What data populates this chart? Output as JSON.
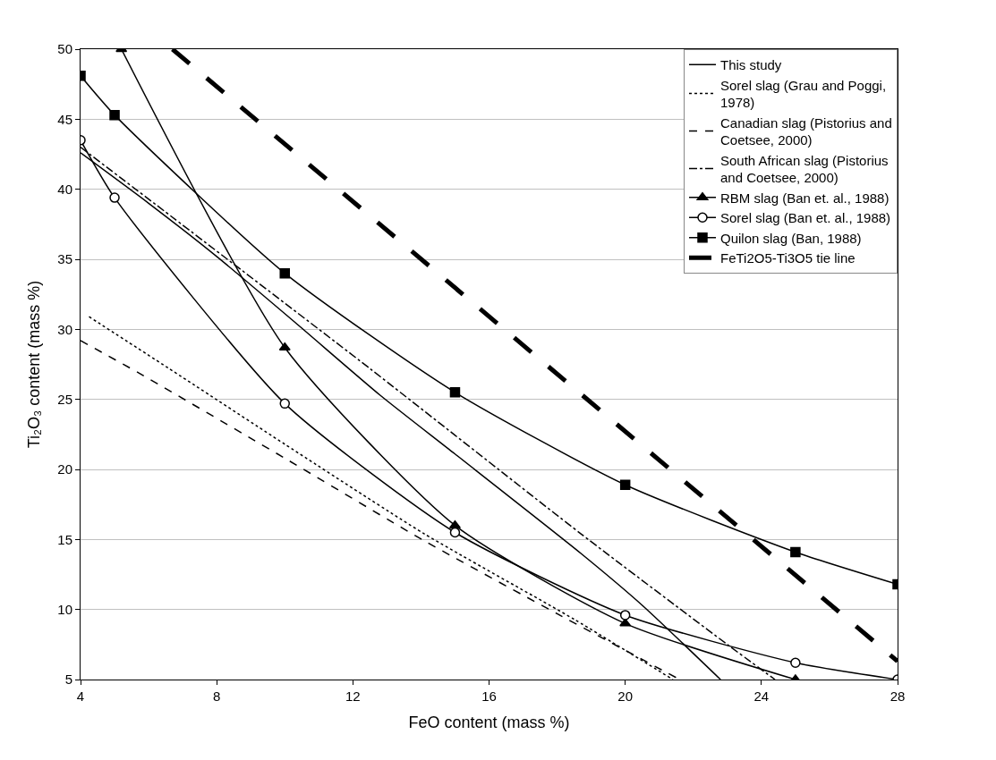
{
  "chart_data": {
    "type": "line",
    "xlabel": "FeO content (mass %)",
    "ylabel": "Ti₂O₃ content (mass %)",
    "xlim": [
      4,
      28
    ],
    "xticks": [
      4,
      8,
      12,
      16,
      20,
      24,
      28
    ],
    "ylim": [
      5,
      50
    ],
    "yticks": [
      5,
      10,
      15,
      20,
      25,
      30,
      35,
      40,
      45,
      50
    ],
    "grid": "y",
    "legend": "top right",
    "series": [
      {
        "name": "This study",
        "color": "#000000",
        "line_style": "solid",
        "marker": "none",
        "x": [
          4,
          6,
          8,
          10.3,
          12.8,
          15,
          18.7,
          20.5,
          22.8
        ],
        "values": [
          42.6,
          39.0,
          35.2,
          30.5,
          25.3,
          21.1,
          14.0,
          10.3,
          5
        ]
      },
      {
        "name": "Sorel slag (Grau and Poggi, 1978)",
        "color": "#000000",
        "line_style": "dotted",
        "marker": "none",
        "x": [
          4.25,
          6.6,
          10,
          14.1,
          18.5,
          21.4
        ],
        "values": [
          30.9,
          27.2,
          21.8,
          15.4,
          9.3,
          5
        ]
      },
      {
        "name": "Canadian slag (Pistorius and Coetsee, 2000)",
        "color": "#000000",
        "line_style": "dashed",
        "marker": "none",
        "x": [
          4,
          5.7,
          10,
          14.1,
          18,
          21.6
        ],
        "values": [
          29.2,
          26.9,
          20.8,
          14.9,
          9.7,
          5
        ]
      },
      {
        "name": "South African slag (Pistorius and Coetsee, 2000)",
        "color": "#000000",
        "line_style": "dashdot",
        "marker": "none",
        "x": [
          4,
          6.7,
          12.5,
          18.7,
          23,
          24.4
        ],
        "values": [
          43,
          38,
          27.2,
          15.4,
          7.5,
          5
        ]
      },
      {
        "name": "RBM slag (Ban et. al., 1988)",
        "color": "#000000",
        "line_style": "solid",
        "marker": "triangle",
        "x": [
          5.2,
          10,
          15,
          20,
          25
        ],
        "values": [
          50,
          28.7,
          16,
          9,
          5
        ]
      },
      {
        "name": "Sorel slag (Ban et. al., 1988)",
        "color": "#000000",
        "line_style": "solid",
        "marker": "open circle",
        "x": [
          4,
          5,
          10,
          15,
          20,
          25,
          28
        ],
        "values": [
          43.5,
          39.4,
          24.7,
          15.5,
          9.6,
          6.2,
          5
        ]
      },
      {
        "name": "Quilon slag (Ban, 1988)",
        "color": "#000000",
        "line_style": "solid",
        "marker": "square",
        "x": [
          4,
          5,
          10,
          15,
          20,
          25,
          28
        ],
        "values": [
          48.1,
          45.3,
          34.0,
          25.5,
          18.9,
          14.1,
          11.8
        ]
      },
      {
        "name": "FeTi2O5-Ti3O5 tie line",
        "color": "#000000",
        "line_style": "longdash",
        "marker": "none",
        "x": [
          6.7,
          28
        ],
        "values": [
          50,
          6.3
        ]
      }
    ]
  }
}
